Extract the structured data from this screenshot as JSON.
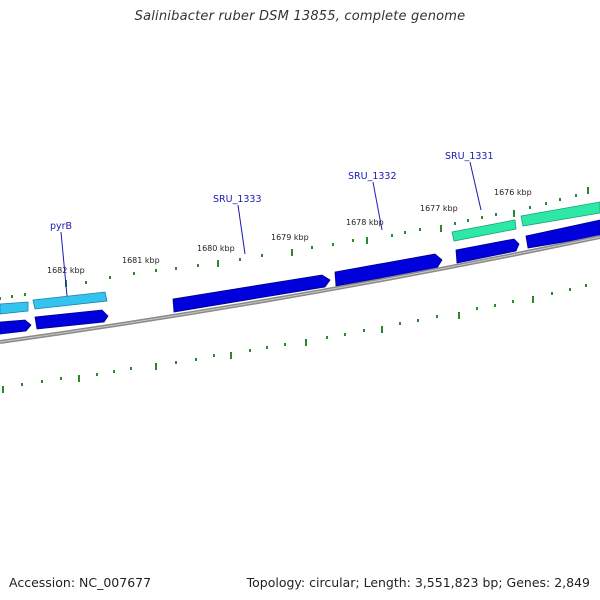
{
  "header": {
    "title": "Salinibacter ruber DSM 13855, complete genome"
  },
  "footer": {
    "accession": "Accession: NC_007677",
    "topology": "Topology: circular; Length: 3,551,823 bp; Genes: 2,849"
  },
  "map": {
    "ticks": [
      "1682 kbp",
      "1681 kbp",
      "1680 kbp",
      "1679 kbp",
      "1678 kbp",
      "1677 kbp",
      "1676 kbp"
    ],
    "gene_labels": [
      "pyrB",
      "SRU_1333",
      "SRU_1332",
      "SRU_1331"
    ],
    "colors": {
      "cds": "#0000dd",
      "gene_cyan": "#33c4ee",
      "gene_green": "#2ee8a6",
      "backbone": "#8a8a8a",
      "tick": "#2a8a2a",
      "label": "#1a1ab5"
    }
  }
}
